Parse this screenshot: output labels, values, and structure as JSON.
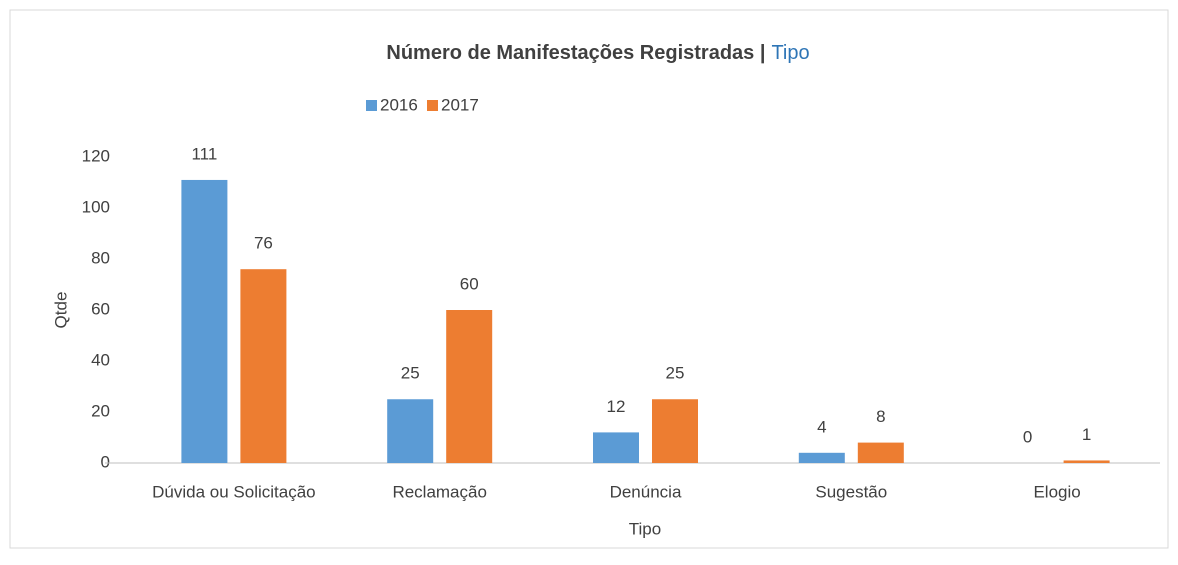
{
  "chart_data": {
    "type": "bar",
    "title": {
      "main": "Número de Manifestações Registradas |",
      "highlight": "Tipo"
    },
    "x_label": "Tipo",
    "y_label": "Qtde",
    "categories": [
      "Dúvida ou Solicitação",
      "Reclamação",
      "Denúncia",
      "Sugestão",
      "Elogio"
    ],
    "series": [
      {
        "name": "2016",
        "color": "#5b9bd5",
        "values": [
          111,
          25,
          12,
          4,
          0
        ]
      },
      {
        "name": "2017",
        "color": "#ed7d31",
        "values": [
          76,
          60,
          25,
          8,
          1
        ]
      }
    ],
    "ylim": [
      0,
      120
    ],
    "yticks": [
      0,
      20,
      40,
      60,
      80,
      100,
      120
    ],
    "grid": false,
    "legend": "top"
  }
}
